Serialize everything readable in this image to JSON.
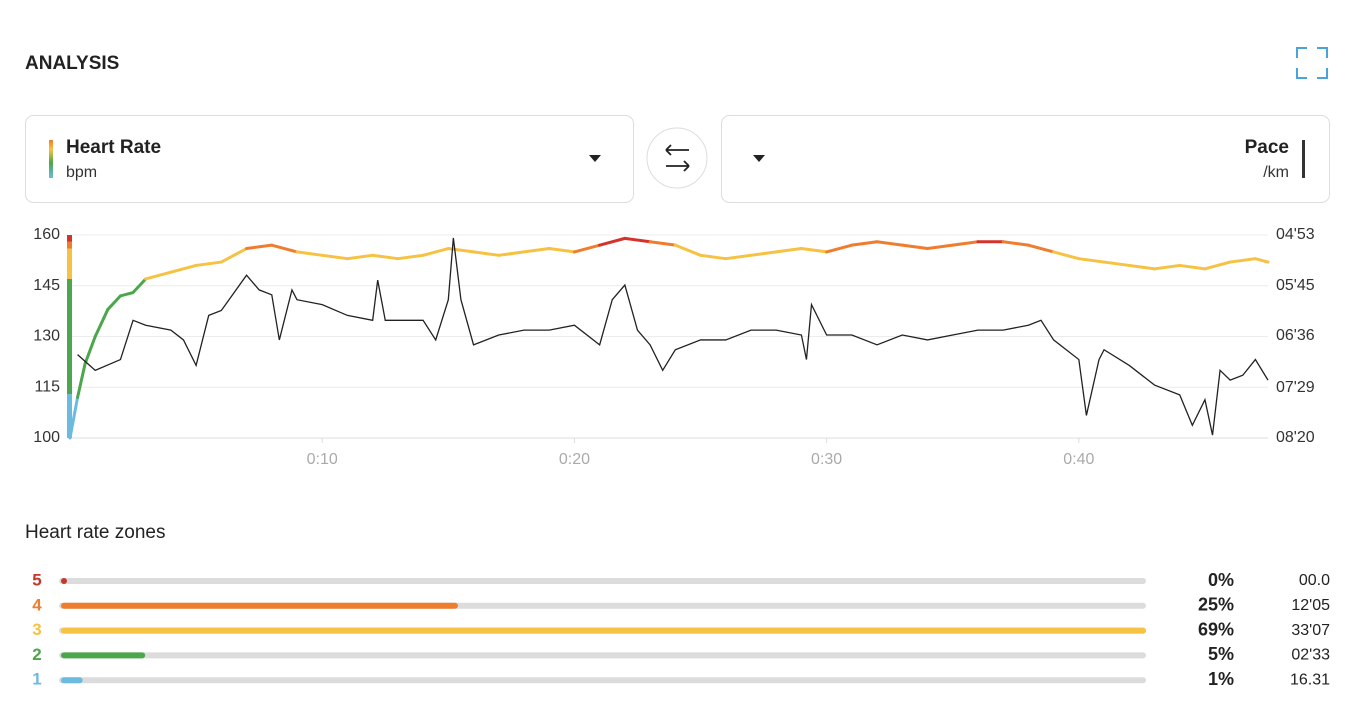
{
  "header": {
    "title": "ANALYSIS"
  },
  "chart_data": {
    "type": "line",
    "zone_bounds": [
      100,
      113,
      147,
      156,
      158,
      160
    ],
    "zone_colors": [
      "#6bbbe0",
      "#4ca64c",
      "#f6c244",
      "#ee7d2e",
      "#d4322c"
    ],
    "xlim": [
      0,
      47.5
    ],
    "xticks": [
      {
        "value": 10,
        "label": "0:10"
      },
      {
        "value": 20,
        "label": "0:20"
      },
      {
        "value": 30,
        "label": "0:30"
      },
      {
        "value": 40,
        "label": "0:40"
      }
    ],
    "ylim": [
      100,
      160
    ],
    "yticks": [
      100,
      115,
      130,
      145,
      160
    ],
    "y2lim": [
      500,
      293
    ],
    "y2ticks": [
      {
        "value": 293,
        "label": "04'53"
      },
      {
        "value": 345,
        "label": "05'45"
      },
      {
        "value": 396,
        "label": "06'36"
      },
      {
        "value": 449,
        "label": "07'29"
      },
      {
        "value": 500,
        "label": "08'20"
      }
    ],
    "grid": true,
    "series": [
      {
        "name": "Heart Rate",
        "unit": "bpm",
        "x": [
          0,
          0.3,
          0.6,
          1,
          1.5,
          2,
          2.5,
          3,
          4,
          5,
          6,
          7,
          8,
          9,
          10,
          11,
          12,
          13,
          14,
          15,
          16,
          17,
          18,
          19,
          20,
          21,
          22,
          23,
          24,
          25,
          26,
          27,
          28,
          29,
          30,
          31,
          32,
          33,
          34,
          35,
          36,
          37,
          38,
          39,
          40,
          41,
          42,
          43,
          44,
          45,
          46,
          47,
          47.5
        ],
        "values": [
          100,
          112,
          122,
          130,
          138,
          142,
          143,
          147,
          149,
          151,
          152,
          156,
          157,
          155,
          154,
          153,
          154,
          153,
          154,
          156,
          155,
          154,
          155,
          156,
          155,
          157,
          159,
          158,
          157,
          154,
          153,
          154,
          155,
          156,
          155,
          157,
          158,
          157,
          156,
          157,
          158,
          158,
          157,
          155,
          153,
          152,
          151,
          150,
          151,
          150,
          152,
          153,
          152
        ]
      },
      {
        "name": "Pace",
        "unit": "/km",
        "color": "#222222",
        "axis": "y2",
        "x": [
          0.3,
          1,
          2,
          2.5,
          3,
          4,
          4.5,
          5,
          5.5,
          6,
          7,
          7.5,
          8,
          8.3,
          8.8,
          9,
          10,
          11,
          12,
          12.2,
          12.5,
          13,
          14,
          14.5,
          15,
          15.2,
          15.5,
          16,
          17,
          18,
          19,
          20,
          21,
          21.5,
          22,
          22.5,
          23,
          23.5,
          24,
          25,
          26,
          27,
          28,
          29,
          29.2,
          29.4,
          30,
          31,
          32,
          33,
          34,
          35,
          36,
          37,
          38,
          38.5,
          39,
          39.5,
          40,
          40.3,
          40.8,
          41,
          42,
          43,
          44,
          44.5,
          45,
          45.3,
          45.6,
          46,
          46.5,
          47,
          47.5
        ],
        "values": [
          415,
          431,
          420,
          380,
          385,
          390,
          400,
          426,
          375,
          370,
          334,
          349,
          354,
          400,
          349,
          359,
          364,
          375,
          380,
          339,
          380,
          380,
          380,
          400,
          359,
          296,
          359,
          405,
          395,
          390,
          390,
          385,
          405,
          359,
          344,
          390,
          405,
          431,
          410,
          400,
          400,
          390,
          390,
          395,
          420,
          364,
          395,
          395,
          405,
          395,
          400,
          395,
          390,
          390,
          385,
          380,
          400,
          410,
          420,
          477,
          420,
          410,
          426,
          446,
          456,
          487,
          461,
          497,
          431,
          441,
          436,
          420,
          441
        ]
      }
    ]
  },
  "zones": {
    "title": "Heart rate zones",
    "rows": [
      {
        "zone": "5",
        "color": "#c0392b",
        "value": 0,
        "value_label": "0%",
        "time": "00.0"
      },
      {
        "zone": "4",
        "color": "#ee7d2e",
        "value": 25,
        "value_label": "25%",
        "time": "12'05"
      },
      {
        "zone": "3",
        "color": "#f6c244",
        "value": 69,
        "value_label": "69%",
        "time": "33'07"
      },
      {
        "zone": "2",
        "color": "#4ca64c",
        "value": 5,
        "value_label": "5%",
        "time": "02'33"
      },
      {
        "zone": "1",
        "color": "#6bbbe0",
        "value": 1,
        "value_label": "1%",
        "time": "16.31"
      }
    ]
  }
}
